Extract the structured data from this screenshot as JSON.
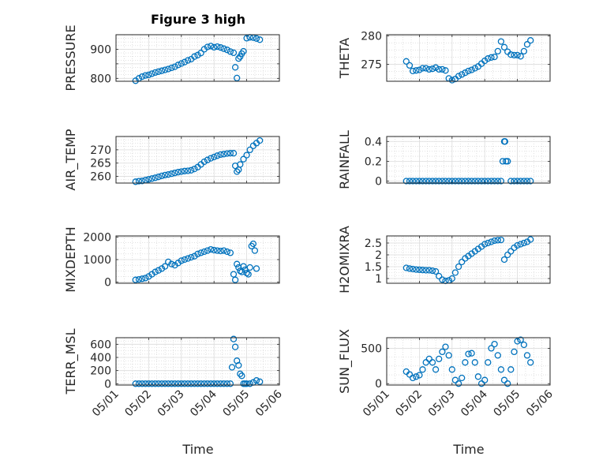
{
  "figure": {
    "title": "Figure 3 high",
    "xlabel": "Time",
    "x_tick_labels": [
      "05/01",
      "05/02",
      "05/03",
      "05/04",
      "05/05",
      "05/06"
    ],
    "marker_color": "#0072BD",
    "grid": true,
    "minor_grid": true
  },
  "chart_data": [
    {
      "type": "scatter",
      "ylabel": "PRESSURE",
      "ylim": [
        790,
        950
      ],
      "yticks": [
        800,
        850,
        900
      ],
      "ytick_labels": [
        "800",
        "",
        "900"
      ],
      "x": [
        1.6,
        1.7,
        1.8,
        1.9,
        2.0,
        2.1,
        2.2,
        2.3,
        2.4,
        2.5,
        2.6,
        2.7,
        2.8,
        2.9,
        3.0,
        3.1,
        3.2,
        3.3,
        3.4,
        3.5,
        3.6,
        3.7,
        3.8,
        3.9,
        4.0,
        4.1,
        4.2,
        4.3,
        4.4,
        4.5,
        4.6,
        4.65,
        4.7,
        4.75,
        4.8,
        4.85,
        4.9,
        5.0,
        5.1,
        5.2,
        5.3,
        5.4
      ],
      "y": [
        792,
        800,
        806,
        810,
        812,
        816,
        820,
        823,
        826,
        829,
        832,
        836,
        840,
        846,
        851,
        856,
        862,
        866,
        875,
        880,
        887,
        900,
        908,
        911,
        907,
        909,
        906,
        902,
        898,
        892,
        888,
        838,
        801,
        868,
        875,
        885,
        893,
        938,
        941,
        940,
        937,
        933
      ]
    },
    {
      "type": "scatter",
      "ylabel": "THETA",
      "ylim": [
        272,
        280.2
      ],
      "yticks": [
        275,
        280
      ],
      "ytick_labels": [
        "275",
        "280"
      ],
      "x": [
        1.6,
        1.7,
        1.8,
        1.9,
        2.0,
        2.1,
        2.2,
        2.3,
        2.4,
        2.5,
        2.6,
        2.7,
        2.8,
        2.9,
        3.0,
        3.1,
        3.2,
        3.3,
        3.4,
        3.5,
        3.6,
        3.7,
        3.8,
        3.9,
        4.0,
        4.1,
        4.2,
        4.3,
        4.4,
        4.5,
        4.6,
        4.7,
        4.8,
        4.9,
        5.0,
        5.1,
        5.2,
        5.3,
        5.4
      ],
      "y": [
        275.5,
        274.8,
        273.8,
        273.9,
        274.0,
        274.3,
        274.3,
        274.1,
        274.2,
        274.4,
        274.1,
        274.1,
        273.9,
        272.5,
        272.2,
        272.4,
        272.9,
        273.2,
        273.5,
        273.8,
        274.0,
        274.3,
        274.6,
        275.1,
        275.6,
        276.0,
        276.2,
        276.3,
        277.3,
        279.0,
        278.0,
        277.2,
        276.7,
        276.6,
        276.6,
        276.4,
        277.3,
        278.5,
        279.2
      ]
    },
    {
      "type": "scatter",
      "ylabel": "AIR_TEMP",
      "ylim": [
        257.5,
        275
      ],
      "yticks": [
        260,
        265,
        270
      ],
      "ytick_labels": [
        "260",
        "265",
        "270"
      ],
      "x": [
        1.6,
        1.7,
        1.8,
        1.9,
        2.0,
        2.1,
        2.2,
        2.3,
        2.4,
        2.5,
        2.6,
        2.7,
        2.8,
        2.9,
        3.0,
        3.1,
        3.2,
        3.3,
        3.4,
        3.5,
        3.6,
        3.7,
        3.8,
        3.9,
        4.0,
        4.1,
        4.2,
        4.3,
        4.4,
        4.5,
        4.6,
        4.65,
        4.7,
        4.75,
        4.8,
        4.9,
        5.0,
        5.1,
        5.2,
        5.3,
        5.4
      ],
      "y": [
        258.0,
        258.2,
        258.3,
        258.6,
        258.9,
        259.2,
        259.5,
        259.8,
        260.2,
        260.5,
        260.7,
        261.0,
        261.3,
        261.6,
        261.8,
        262.0,
        262.1,
        262.3,
        262.8,
        263.5,
        264.5,
        265.5,
        266.2,
        266.8,
        267.3,
        267.8,
        268.2,
        268.4,
        268.6,
        268.7,
        268.7,
        264.0,
        261.8,
        262.5,
        264.5,
        266.5,
        268.0,
        270.0,
        271.5,
        272.5,
        273.5
      ]
    },
    {
      "type": "scatter",
      "ylabel": "RAINFALL",
      "ylim": [
        -0.02,
        0.45
      ],
      "yticks": [
        0,
        0.2,
        0.4
      ],
      "ytick_labels": [
        "0",
        "0.2",
        "0.4"
      ],
      "x": [
        1.6,
        1.7,
        1.8,
        1.9,
        2.0,
        2.1,
        2.2,
        2.3,
        2.4,
        2.5,
        2.6,
        2.7,
        2.8,
        2.9,
        3.0,
        3.1,
        3.2,
        3.3,
        3.4,
        3.5,
        3.6,
        3.7,
        3.8,
        3.9,
        4.0,
        4.1,
        4.2,
        4.3,
        4.4,
        4.5,
        4.55,
        4.6,
        4.62,
        4.65,
        4.7,
        4.8,
        4.9,
        5.0,
        5.1,
        5.2,
        5.3,
        5.4
      ],
      "y": [
        0,
        0,
        0,
        0,
        0,
        0,
        0,
        0,
        0,
        0,
        0,
        0,
        0,
        0,
        0,
        0,
        0,
        0,
        0,
        0,
        0,
        0,
        0,
        0,
        0,
        0,
        0,
        0,
        0,
        0,
        0.2,
        0.4,
        0.4,
        0.2,
        0.2,
        0,
        0,
        0,
        0,
        0,
        0,
        0
      ]
    },
    {
      "type": "scatter",
      "ylabel": "MIXDEPTH",
      "ylim": [
        -50,
        2050
      ],
      "yticks": [
        0,
        1000,
        2000
      ],
      "ytick_labels": [
        "0",
        "1000",
        "2000"
      ],
      "x": [
        1.6,
        1.7,
        1.8,
        1.9,
        2.0,
        2.1,
        2.2,
        2.3,
        2.4,
        2.5,
        2.6,
        2.7,
        2.8,
        2.9,
        3.0,
        3.1,
        3.2,
        3.3,
        3.4,
        3.5,
        3.6,
        3.7,
        3.8,
        3.9,
        4.0,
        4.1,
        4.2,
        4.3,
        4.4,
        4.5,
        4.6,
        4.65,
        4.7,
        4.75,
        4.8,
        4.85,
        4.9,
        4.95,
        5.0,
        5.05,
        5.1,
        5.15,
        5.2,
        5.25,
        5.3
      ],
      "y": [
        100,
        120,
        150,
        180,
        250,
        350,
        450,
        520,
        600,
        700,
        900,
        800,
        750,
        850,
        950,
        1000,
        1050,
        1100,
        1150,
        1250,
        1300,
        1350,
        1400,
        1450,
        1420,
        1400,
        1380,
        1400,
        1350,
        1300,
        350,
        100,
        800,
        650,
        500,
        450,
        700,
        550,
        400,
        350,
        650,
        1600,
        1700,
        1400,
        600
      ]
    },
    {
      "type": "scatter",
      "ylabel": "H2OMIXRA",
      "ylim": [
        0.8,
        2.8
      ],
      "yticks": [
        1,
        1.5,
        2,
        2.5
      ],
      "ytick_labels": [
        "1",
        "1.5",
        "2",
        "2.5"
      ],
      "x": [
        1.6,
        1.7,
        1.8,
        1.9,
        2.0,
        2.1,
        2.2,
        2.3,
        2.4,
        2.5,
        2.6,
        2.7,
        2.8,
        2.9,
        3.0,
        3.1,
        3.2,
        3.3,
        3.4,
        3.5,
        3.6,
        3.7,
        3.8,
        3.9,
        4.0,
        4.1,
        4.2,
        4.3,
        4.4,
        4.5,
        4.6,
        4.7,
        4.8,
        4.9,
        5.0,
        5.1,
        5.2,
        5.3,
        5.4
      ],
      "y": [
        1.45,
        1.42,
        1.4,
        1.38,
        1.37,
        1.36,
        1.35,
        1.35,
        1.33,
        1.3,
        1.1,
        0.95,
        0.9,
        0.92,
        1.0,
        1.25,
        1.5,
        1.7,
        1.85,
        1.95,
        2.05,
        2.15,
        2.25,
        2.35,
        2.45,
        2.5,
        2.55,
        2.6,
        2.62,
        2.63,
        1.8,
        2.0,
        2.15,
        2.3,
        2.4,
        2.45,
        2.5,
        2.55,
        2.65
      ]
    },
    {
      "type": "scatter",
      "ylabel": "TERR_MSL",
      "ylim": [
        -20,
        700
      ],
      "yticks": [
        0,
        200,
        400,
        600
      ],
      "ytick_labels": [
        "0",
        "200",
        "400",
        "600"
      ],
      "x": [
        1.6,
        1.7,
        1.8,
        1.9,
        2.0,
        2.1,
        2.2,
        2.3,
        2.4,
        2.5,
        2.6,
        2.7,
        2.8,
        2.9,
        3.0,
        3.1,
        3.2,
        3.3,
        3.4,
        3.5,
        3.6,
        3.7,
        3.8,
        3.9,
        4.0,
        4.1,
        4.2,
        4.3,
        4.4,
        4.5,
        4.55,
        4.6,
        4.65,
        4.7,
        4.75,
        4.8,
        4.85,
        4.9,
        4.95,
        5.0,
        5.1,
        5.2,
        5.3,
        5.4
      ],
      "y": [
        0,
        0,
        0,
        0,
        0,
        0,
        0,
        0,
        0,
        0,
        0,
        0,
        0,
        0,
        0,
        0,
        0,
        0,
        0,
        0,
        0,
        0,
        0,
        0,
        0,
        0,
        0,
        0,
        0,
        0,
        250,
        680,
        560,
        350,
        280,
        150,
        120,
        0,
        0,
        0,
        0,
        20,
        50,
        30
      ]
    },
    {
      "type": "scatter",
      "ylabel": "SUN_FLUX",
      "ylim": [
        -20,
        650
      ],
      "yticks": [
        0,
        500
      ],
      "ytick_labels": [
        "0",
        "500"
      ],
      "x": [
        1.6,
        1.7,
        1.8,
        1.9,
        2.0,
        2.1,
        2.2,
        2.3,
        2.4,
        2.5,
        2.6,
        2.7,
        2.8,
        2.9,
        3.0,
        3.1,
        3.2,
        3.3,
        3.4,
        3.5,
        3.6,
        3.7,
        3.8,
        3.9,
        4.0,
        4.1,
        4.2,
        4.3,
        4.4,
        4.5,
        4.6,
        4.7,
        4.8,
        4.9,
        5.0,
        5.1,
        5.2,
        5.3,
        5.4
      ],
      "y": [
        170,
        130,
        80,
        100,
        120,
        200,
        300,
        350,
        300,
        200,
        350,
        450,
        520,
        400,
        200,
        50,
        0,
        80,
        300,
        420,
        430,
        300,
        100,
        0,
        50,
        300,
        500,
        560,
        400,
        200,
        50,
        0,
        200,
        450,
        600,
        620,
        550,
        400,
        300
      ]
    }
  ]
}
